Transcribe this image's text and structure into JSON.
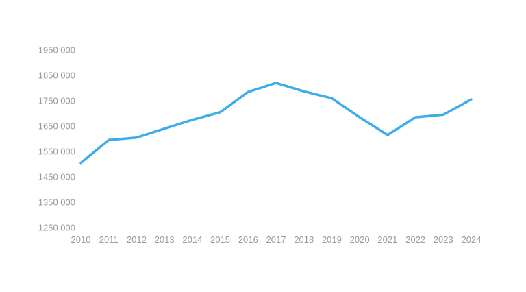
{
  "chart": {
    "line_color": "#3aadea",
    "label_color": "#9a9a9a",
    "background_color": "#ffffff"
  },
  "chart_data": {
    "type": "line",
    "title": "",
    "xlabel": "",
    "ylabel": "",
    "categories": [
      "2010",
      "2011",
      "2012",
      "2013",
      "2014",
      "2015",
      "2016",
      "2017",
      "2018",
      "2019",
      "2020",
      "2021",
      "2022",
      "2023",
      "2024"
    ],
    "series": [
      {
        "name": "value",
        "values": [
          1505000,
          1595000,
          1605000,
          1640000,
          1675000,
          1705000,
          1785000,
          1820000,
          1787000,
          1760000,
          1685000,
          1615000,
          1685000,
          1695000,
          1755000
        ]
      }
    ],
    "ylim": [
      1250000,
      1950000
    ],
    "ytick_step": 100000,
    "ytick_labels": [
      "1250 000",
      "1350 000",
      "1450 000",
      "1550 000",
      "1650 000",
      "1750 000",
      "1850 000",
      "1950 000"
    ],
    "grid": false,
    "legend": false,
    "markers": false
  }
}
